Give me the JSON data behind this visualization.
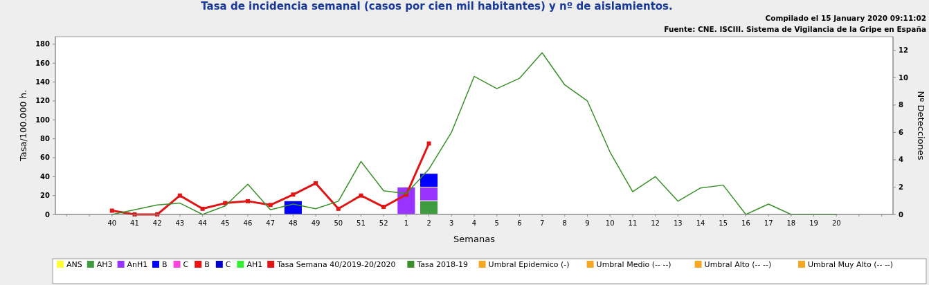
{
  "chart_data": {
    "type": "bar",
    "stacked": true,
    "title": "Tasa de incidencia semanal (casos por cien mil habitantes) y nº de aislamientos.",
    "annotations": [
      "Compilado el 15 January 2020 09:11:02",
      "Fuente: CNE. ISCIII. Sistema de Vigilancia de la Gripe en España"
    ],
    "xlabel": "Semanas",
    "ylabel": "Tasa/100.000 h.",
    "y2label": "Nº Detecciones",
    "categories": [
      null,
      null,
      "40",
      "41",
      "42",
      "43",
      "44",
      "45",
      "46",
      "47",
      "48",
      "49",
      "50",
      "51",
      "52",
      "1",
      "2",
      "3",
      "4",
      "5",
      "6",
      "7",
      "8",
      "9",
      "10",
      "11",
      "12",
      "13",
      "14",
      "15",
      "16",
      "17",
      "18",
      "19",
      "20",
      null,
      null
    ],
    "ylim": [
      0,
      188
    ],
    "yticks": [
      0,
      20,
      40,
      60,
      80,
      100,
      120,
      140,
      160,
      180
    ],
    "y2lim": [
      0,
      13
    ],
    "y2ticks": [
      0,
      2,
      4,
      6,
      8,
      10,
      12
    ],
    "grid": false,
    "legend": "bottom",
    "series": [
      {
        "name": "ANS",
        "color": "#ffff33",
        "axis": "y2",
        "values": [
          null,
          null,
          null,
          null,
          null,
          null,
          null,
          null,
          null,
          null,
          null,
          null,
          null,
          null,
          null,
          null,
          null,
          null,
          null,
          null,
          null,
          null,
          null,
          null,
          null,
          null,
          null,
          null,
          null,
          null,
          null,
          null,
          null,
          null,
          null,
          null,
          null
        ]
      },
      {
        "name": "AH3",
        "color": "#3f9b3f",
        "axis": "y2",
        "values": [
          null,
          null,
          null,
          null,
          null,
          null,
          null,
          null,
          null,
          null,
          null,
          null,
          null,
          null,
          null,
          null,
          1,
          null,
          null,
          null,
          null,
          null,
          null,
          null,
          null,
          null,
          null,
          null,
          null,
          null,
          null,
          null,
          null,
          null,
          null,
          null,
          null
        ]
      },
      {
        "name": "AnH1",
        "color": "#9933ff",
        "axis": "y2",
        "values": [
          null,
          null,
          null,
          null,
          null,
          null,
          null,
          null,
          null,
          null,
          null,
          null,
          null,
          null,
          null,
          2,
          1,
          null,
          null,
          null,
          null,
          null,
          null,
          null,
          null,
          null,
          null,
          null,
          null,
          null,
          null,
          null,
          null,
          null,
          null,
          null,
          null
        ]
      },
      {
        "name": "B",
        "color": "#0000ff",
        "axis": "y2",
        "values": [
          null,
          null,
          null,
          null,
          null,
          null,
          null,
          null,
          null,
          null,
          1,
          null,
          null,
          null,
          null,
          null,
          1,
          null,
          null,
          null,
          null,
          null,
          null,
          null,
          null,
          null,
          null,
          null,
          null,
          null,
          null,
          null,
          null,
          null,
          null,
          null,
          null
        ]
      },
      {
        "name": "C",
        "color": "#ff44dd",
        "axis": "y2",
        "values": [
          null,
          null,
          null,
          null,
          null,
          null,
          null,
          null,
          null,
          null,
          null,
          null,
          null,
          null,
          null,
          null,
          null,
          null,
          null,
          null,
          null,
          null,
          null,
          null,
          null,
          null,
          null,
          null,
          null,
          null,
          null,
          null,
          null,
          null,
          null,
          null,
          null
        ]
      },
      {
        "name": "B",
        "color": "#ee1111",
        "axis": "y2",
        "values": [
          null,
          null,
          null,
          null,
          null,
          null,
          null,
          null,
          null,
          null,
          null,
          null,
          null,
          null,
          null,
          null,
          null,
          null,
          null,
          null,
          null,
          null,
          null,
          null,
          null,
          null,
          null,
          null,
          null,
          null,
          null,
          null,
          null,
          null,
          null,
          null,
          null
        ]
      },
      {
        "name": "C",
        "color": "#0000cc",
        "axis": "y2",
        "values": [
          null,
          null,
          null,
          null,
          null,
          null,
          null,
          null,
          null,
          null,
          null,
          null,
          null,
          null,
          null,
          null,
          null,
          null,
          null,
          null,
          null,
          null,
          null,
          null,
          null,
          null,
          null,
          null,
          null,
          null,
          null,
          null,
          null,
          null,
          null,
          null,
          null
        ]
      },
      {
        "name": "AH1",
        "color": "#33ee33",
        "axis": "y2",
        "values": [
          null,
          null,
          null,
          null,
          null,
          null,
          null,
          null,
          null,
          null,
          null,
          null,
          null,
          null,
          null,
          null,
          null,
          null,
          null,
          null,
          null,
          null,
          null,
          null,
          null,
          null,
          null,
          null,
          null,
          null,
          null,
          null,
          null,
          null,
          null,
          null,
          null
        ]
      },
      {
        "name": "Tasa Semana 40/2019-20/2020",
        "type": "line",
        "marker": "square",
        "color": "#e01515",
        "values": [
          null,
          null,
          4,
          0,
          0,
          20,
          6,
          12,
          14,
          10,
          21,
          33,
          6,
          20,
          8,
          21,
          75,
          null,
          null,
          null,
          null,
          null,
          null,
          null,
          null,
          null,
          null,
          null,
          null,
          null,
          null,
          null,
          null,
          null,
          null,
          null,
          null
        ]
      },
      {
        "name": "Tasa 2018-19",
        "type": "line",
        "marker": "none",
        "color": "#3a8f2a",
        "values": [
          null,
          null,
          0,
          5,
          10,
          12,
          0,
          9,
          32,
          5,
          11,
          6,
          14,
          56,
          25,
          22,
          48,
          87,
          146,
          133,
          144,
          171,
          137,
          120,
          66,
          24,
          40,
          14,
          28,
          31,
          0,
          11,
          0,
          0,
          0,
          null,
          null
        ]
      },
      {
        "name": "Umbral Epidemico (-)",
        "type": "line",
        "color": "#f5a623",
        "values": [
          null,
          null,
          null,
          null,
          null,
          null,
          null,
          null,
          null,
          null,
          null,
          null,
          null,
          null,
          null,
          null,
          null,
          null,
          null,
          null,
          null,
          null,
          null,
          null,
          null,
          null,
          null,
          null,
          null,
          null,
          null,
          null,
          null,
          null,
          null,
          null,
          null
        ]
      },
      {
        "name": "Umbral Medio (-- --)",
        "type": "line",
        "color": "#f5a623",
        "values": [
          null,
          null,
          null,
          null,
          null,
          null,
          null,
          null,
          null,
          null,
          null,
          null,
          null,
          null,
          null,
          null,
          null,
          null,
          null,
          null,
          null,
          null,
          null,
          null,
          null,
          null,
          null,
          null,
          null,
          null,
          null,
          null,
          null,
          null,
          null,
          null,
          null
        ]
      },
      {
        "name": "Umbral Alto (-- --)",
        "type": "line",
        "color": "#f5a623",
        "values": [
          null,
          null,
          null,
          null,
          null,
          null,
          null,
          null,
          null,
          null,
          null,
          null,
          null,
          null,
          null,
          null,
          null,
          null,
          null,
          null,
          null,
          null,
          null,
          null,
          null,
          null,
          null,
          null,
          null,
          null,
          null,
          null,
          null,
          null,
          null,
          null,
          null
        ]
      },
      {
        "name": "Umbral Muy Alto (-- --)",
        "type": "line",
        "color": "#f5a623",
        "values": [
          null,
          null,
          null,
          null,
          null,
          null,
          null,
          null,
          null,
          null,
          null,
          null,
          null,
          null,
          null,
          null,
          null,
          null,
          null,
          null,
          null,
          null,
          null,
          null,
          null,
          null,
          null,
          null,
          null,
          null,
          null,
          null,
          null,
          null,
          null,
          null,
          null
        ]
      }
    ]
  }
}
